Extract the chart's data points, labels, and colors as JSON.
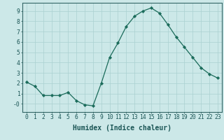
{
  "x": [
    0,
    1,
    2,
    3,
    4,
    5,
    6,
    7,
    8,
    9,
    10,
    11,
    12,
    13,
    14,
    15,
    16,
    17,
    18,
    19,
    20,
    21,
    22,
    23
  ],
  "y": [
    2.1,
    1.7,
    0.8,
    0.8,
    0.8,
    1.1,
    0.3,
    -0.1,
    -0.2,
    2.0,
    4.5,
    5.9,
    7.5,
    8.5,
    9.0,
    9.3,
    8.8,
    7.7,
    6.5,
    5.5,
    4.5,
    3.5,
    2.9,
    2.5
  ],
  "line_color": "#1a6b5a",
  "marker": "D",
  "marker_size": 2.2,
  "bg_color": "#cce8e8",
  "grid_color": "#aad0d0",
  "xlabel": "Humidex (Indice chaleur)",
  "ylabel": "",
  "ylim": [
    -0.8,
    9.8
  ],
  "xlim": [
    -0.5,
    23.5
  ],
  "yticks": [
    0,
    1,
    2,
    3,
    4,
    5,
    6,
    7,
    8,
    9
  ],
  "ytick_labels": [
    "-0",
    "1",
    "2",
    "3",
    "4",
    "5",
    "6",
    "7",
    "8",
    "9"
  ],
  "xticks": [
    0,
    1,
    2,
    3,
    4,
    5,
    6,
    7,
    8,
    9,
    10,
    11,
    12,
    13,
    14,
    15,
    16,
    17,
    18,
    19,
    20,
    21,
    22,
    23
  ],
  "spine_color": "#336666",
  "tick_color": "#1a5555",
  "label_fontsize": 6.5,
  "tick_fontsize": 5.8,
  "xlabel_fontsize": 7.0
}
